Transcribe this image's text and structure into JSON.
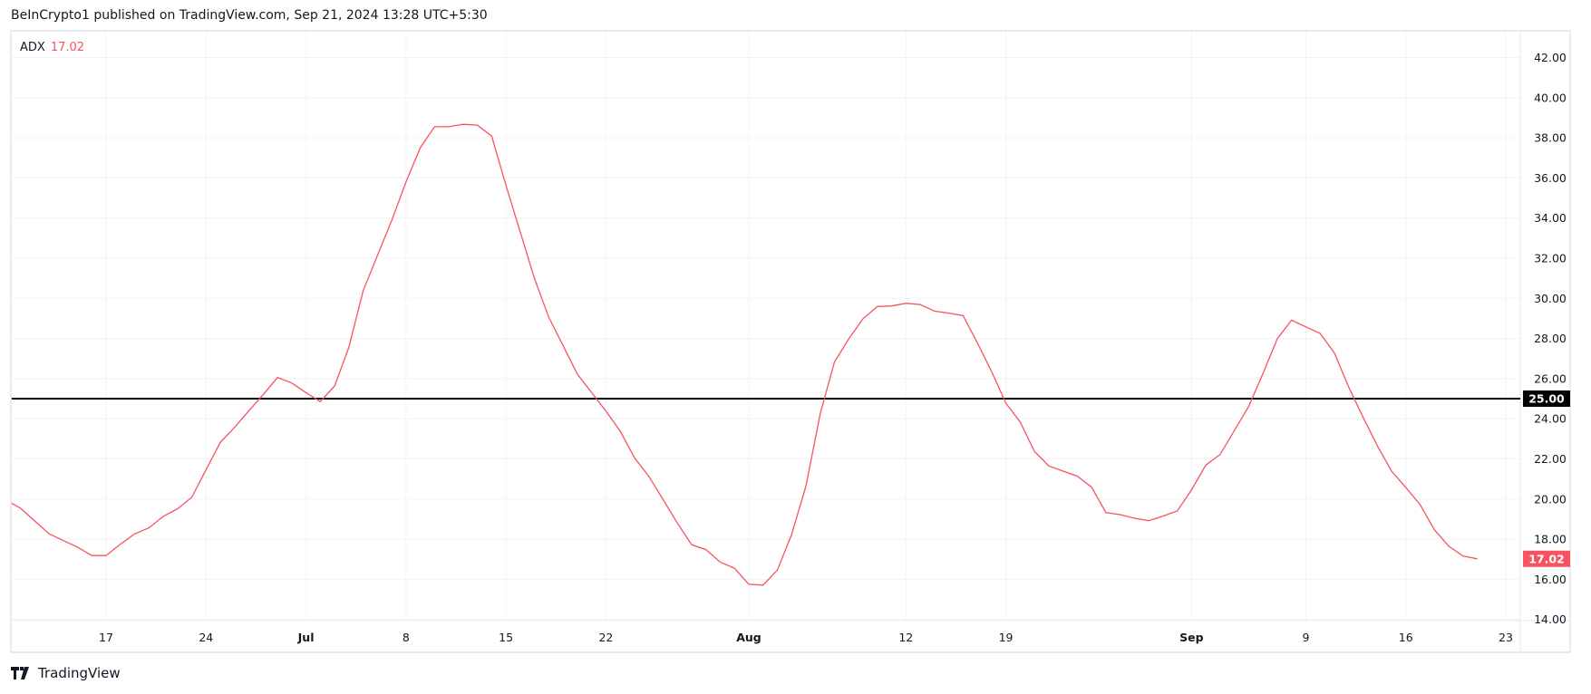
{
  "header": {
    "published": "BeInCrypto1 published on TradingView.com, Sep 21, 2024 13:28 UTC+5:30"
  },
  "legend": {
    "indicator": "ADX",
    "value": "17.02"
  },
  "footer": {
    "brand": "TradingView"
  },
  "colors": {
    "series": "#f7525f",
    "reference_line": "#000000",
    "grid": "#f0f3fa"
  },
  "chart_data": {
    "type": "line",
    "title": "",
    "xlabel": "",
    "ylabel": "",
    "ylim": [
      14,
      42
    ],
    "grid": true,
    "legend": "top-left",
    "y_ticks": [
      "14.00",
      "16.00",
      "18.00",
      "20.00",
      "22.00",
      "24.00",
      "26.00",
      "28.00",
      "30.00",
      "32.00",
      "34.00",
      "36.00",
      "38.00",
      "40.00",
      "42.00"
    ],
    "x_ticks": [
      {
        "date": "2024-06-17",
        "label": "17"
      },
      {
        "date": "2024-06-24",
        "label": "24"
      },
      {
        "date": "2024-07-01",
        "label": "Jul",
        "bold": true
      },
      {
        "date": "2024-07-08",
        "label": "8"
      },
      {
        "date": "2024-07-15",
        "label": "15"
      },
      {
        "date": "2024-07-22",
        "label": "22"
      },
      {
        "date": "2024-08-01",
        "label": "Aug",
        "bold": true
      },
      {
        "date": "2024-08-12",
        "label": "12"
      },
      {
        "date": "2024-08-19",
        "label": "19"
      },
      {
        "date": "2024-09-01",
        "label": "Sep",
        "bold": true
      },
      {
        "date": "2024-09-09",
        "label": "9"
      },
      {
        "date": "2024-09-16",
        "label": "16"
      },
      {
        "date": "2024-09-23",
        "label": "23"
      }
    ],
    "horizontal_line": {
      "value": 25,
      "label": "25.00"
    },
    "last_value_label": "17.02",
    "series": [
      {
        "name": "ADX",
        "start_date": "2024-06-10",
        "values": [
          19.95,
          19.54,
          18.91,
          18.27,
          17.93,
          17.6,
          17.18,
          17.18,
          17.75,
          18.26,
          18.56,
          19.13,
          19.51,
          20.08,
          21.46,
          22.82,
          23.57,
          24.4,
          25.2,
          26.05,
          25.78,
          25.3,
          24.85,
          25.63,
          27.55,
          30.38,
          32.13,
          33.88,
          35.8,
          37.5,
          38.55,
          38.55,
          38.67,
          38.63,
          38.08,
          35.63,
          33.3,
          30.97,
          29.05,
          27.63,
          26.22,
          25.3,
          24.38,
          23.38,
          22.05,
          21.13,
          19.97,
          18.8,
          17.72,
          17.48,
          16.85,
          16.55,
          15.75,
          15.71,
          16.46,
          18.23,
          20.64,
          24.25,
          26.83,
          27.98,
          28.98,
          29.59,
          29.62,
          29.75,
          29.69,
          29.36,
          29.26,
          29.14,
          27.78,
          26.35,
          24.77,
          23.84,
          22.37,
          21.65,
          21.39,
          21.14,
          20.59,
          19.32,
          19.22,
          19.04,
          18.92,
          19.15,
          19.4,
          20.46,
          21.69,
          22.22,
          23.41,
          24.61,
          26.26,
          27.98,
          28.91,
          28.58,
          28.25,
          27.28,
          25.58,
          24.09,
          22.66,
          21.39,
          20.57,
          19.72,
          18.47,
          17.65,
          17.16,
          17.02
        ]
      }
    ]
  }
}
